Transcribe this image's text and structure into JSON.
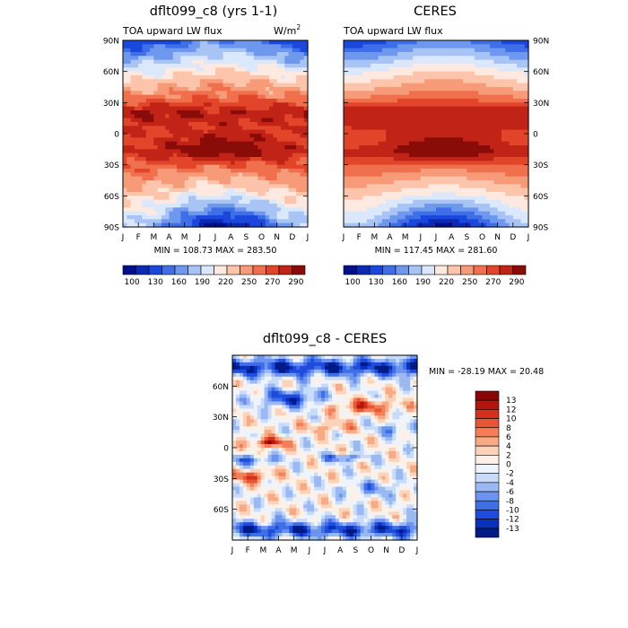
{
  "colors": {
    "abs_levels": [
      "#000f8c",
      "#0a2ab4",
      "#1a47dc",
      "#3f6fe6",
      "#6e98ee",
      "#a7c4f4",
      "#dbe8fb",
      "#fde9df",
      "#fcc4aa",
      "#f79a78",
      "#f0704d",
      "#e2452a",
      "#c12416",
      "#8a0c08"
    ],
    "diff_levels": [
      "#001a86",
      "#0a30bb",
      "#1f4bde",
      "#3f6fe6",
      "#6c94ee",
      "#9ab9f3",
      "#c8dbf8",
      "#eef4fd",
      "#fdf0e6",
      "#fcd2b8",
      "#f8aa85",
      "#f37f59",
      "#e85634",
      "#d3311b",
      "#b4150c",
      "#860806"
    ]
  },
  "chart_data": [
    {
      "type": "heatmap",
      "name": "model",
      "title": "dflt099_c8 (yrs 1-1)",
      "subtitle_left": "TOA upward LW flux",
      "units_base": "W/m",
      "units_exp": "2",
      "x_ticks": [
        "J",
        "F",
        "M",
        "A",
        "M",
        "J",
        "J",
        "A",
        "S",
        "O",
        "N",
        "D",
        "J"
      ],
      "y_ticks": [
        "90N",
        "60N",
        "30N",
        "0",
        "30S",
        "60S",
        "90S"
      ],
      "y_range": [
        -90,
        90
      ],
      "stats_text": "MIN = 108.73 MAX = 283.50",
      "min": 108.73,
      "max": 283.5,
      "levels": [
        100,
        110,
        120,
        130,
        140,
        150,
        160,
        170,
        180,
        190,
        200,
        210,
        220,
        230,
        240,
        250,
        260,
        270,
        280,
        290
      ],
      "colorbar_labels": [
        "100",
        "130",
        "160",
        "190",
        "220",
        "250",
        "270",
        "290"
      ]
    },
    {
      "type": "heatmap",
      "name": "ceres",
      "title": "CERES",
      "subtitle_left": "TOA upward LW flux",
      "x_ticks": [
        "J",
        "F",
        "M",
        "A",
        "M",
        "J",
        "J",
        "A",
        "S",
        "O",
        "N",
        "D",
        "J"
      ],
      "y_ticks": [
        "90N",
        "60N",
        "30N",
        "0",
        "30S",
        "60S",
        "90S"
      ],
      "y_range": [
        -90,
        90
      ],
      "stats_text": "MIN = 117.45 MAX = 281.60",
      "min": 117.45,
      "max": 281.6,
      "levels": [
        100,
        110,
        120,
        130,
        140,
        150,
        160,
        170,
        180,
        190,
        200,
        210,
        220,
        230,
        240,
        250,
        260,
        270,
        280,
        290
      ],
      "colorbar_labels": [
        "100",
        "130",
        "160",
        "190",
        "220",
        "250",
        "270",
        "290"
      ]
    },
    {
      "type": "heatmap",
      "name": "difference",
      "title": "dflt099_c8 - CERES",
      "x_ticks": [
        "J",
        "F",
        "M",
        "A",
        "M",
        "J",
        "J",
        "A",
        "S",
        "O",
        "N",
        "D",
        "J"
      ],
      "y_ticks": [
        "60N",
        "30N",
        "0",
        "30S",
        "60S"
      ],
      "y_range": [
        -90,
        90
      ],
      "stats_text": "MIN = -28.19 MAX =  20.48",
      "min": -28.19,
      "max": 20.48,
      "levels": [
        -13,
        -12,
        -10,
        -8,
        -6,
        -4,
        -2,
        0,
        2,
        4,
        6,
        8,
        10,
        12,
        13
      ],
      "colorbar_labels": [
        "13",
        "12",
        "10",
        "8",
        "6",
        "4",
        "2",
        "0",
        "-2",
        "-4",
        "-6",
        "-8",
        "-10",
        "-12",
        "-13"
      ]
    }
  ]
}
